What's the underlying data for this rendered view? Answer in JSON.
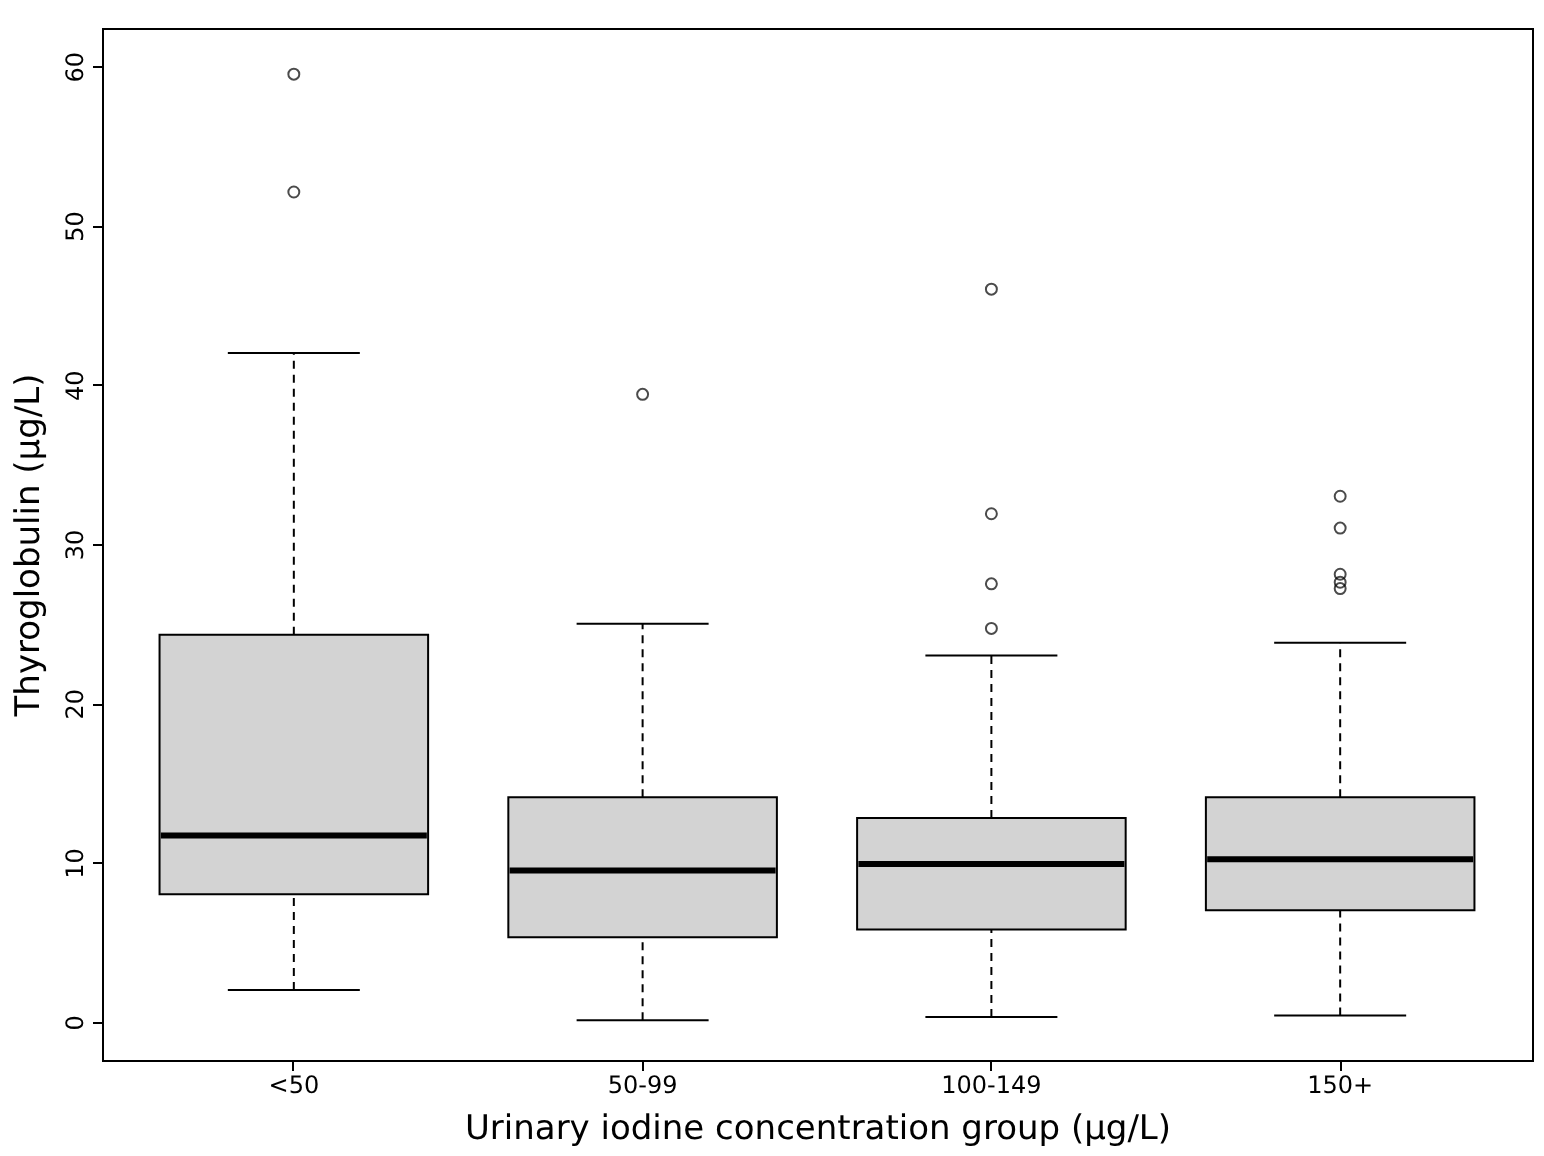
{
  "chart_data": {
    "type": "box",
    "xlabel": "Urinary iodine concentration group (µg/L)",
    "ylabel": "Thyroglobulin (µg/L)",
    "categories": [
      "<50",
      "50-99",
      "100-149",
      "150+"
    ],
    "ylim": [
      -2.4,
      62.4
    ],
    "yticks": [
      0,
      10,
      20,
      30,
      40,
      50,
      60
    ],
    "grid": false,
    "marker": "circle",
    "line_style": "dashed",
    "series": [
      {
        "color": "#d3d3d3",
        "boxes": [
          {
            "low": 2,
            "q1": 8,
            "median": 11.7,
            "q3": 24.3,
            "high": 42,
            "outliers": [
              52.1,
              59.5
            ]
          },
          {
            "low": 0.1,
            "q1": 5.3,
            "median": 9.5,
            "q3": 14.1,
            "high": 25,
            "outliers": [
              39.4
            ]
          },
          {
            "low": 0.3,
            "q1": 5.8,
            "median": 9.9,
            "q3": 12.8,
            "high": 23,
            "outliers": [
              24.7,
              27.5,
              31.9,
              46
            ]
          },
          {
            "low": 0.4,
            "q1": 7,
            "median": 10.2,
            "q3": 14.1,
            "high": 23.8,
            "outliers": [
              27.2,
              27.6,
              28.1,
              31,
              33
            ]
          }
        ]
      }
    ]
  }
}
